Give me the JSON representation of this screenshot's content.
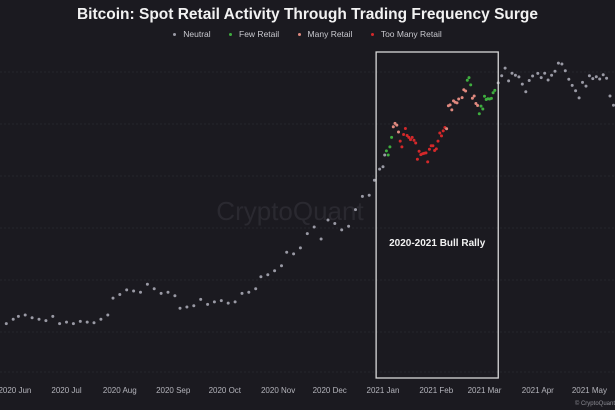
{
  "chart_data": {
    "type": "scatter",
    "title": "Bitcoin: Spot Retail Activity Through Trading Frequency Surge",
    "xlabel": "",
    "ylabel": "",
    "y_scale": "log",
    "ylim": [
      6200,
      72700
    ],
    "y_axis_labels_shown": false,
    "grid": "horizontal, faint dashed",
    "legend_placement": "top-center",
    "legend": [
      {
        "key": "n",
        "label": "Neutral",
        "color": "#9a9aa5"
      },
      {
        "key": "f",
        "label": "Few Retail",
        "color": "#3fae3f"
      },
      {
        "key": "m",
        "label": "Many Retail",
        "color": "#e0897f"
      },
      {
        "key": "t",
        "label": "Too Many Retail",
        "color": "#d4282a"
      }
    ],
    "x_ticks": [
      {
        "date": "2020-06-01",
        "label": "2020 Jun"
      },
      {
        "date": "2020-07-01",
        "label": "2020 Jul"
      },
      {
        "date": "2020-08-01",
        "label": "2020 Aug"
      },
      {
        "date": "2020-09-01",
        "label": "2020 Sep"
      },
      {
        "date": "2020-10-01",
        "label": "2020 Oct"
      },
      {
        "date": "2020-11-01",
        "label": "2020 Nov"
      },
      {
        "date": "2020-12-01",
        "label": "2020 Dec"
      },
      {
        "date": "2021-01-01",
        "label": "2021 Jan"
      },
      {
        "date": "2021-02-01",
        "label": "2021 Feb"
      },
      {
        "date": "2021-03-01",
        "label": "2021 Mar"
      },
      {
        "date": "2021-04-01",
        "label": "2021 Apr"
      },
      {
        "date": "2021-05-01",
        "label": "2021 May"
      }
    ],
    "annotation": {
      "label": "2020-2021 Bull Rally",
      "start": "2020-12-28",
      "end": "2021-03-09"
    },
    "watermark": "CryptoQuant",
    "copyright": "© CryptoQuant",
    "points": [
      [
        "2020-05-27",
        9100,
        "n"
      ],
      [
        "2020-05-31",
        9400,
        "n"
      ],
      [
        "2020-06-03",
        9600,
        "n"
      ],
      [
        "2020-06-07",
        9700,
        "n"
      ],
      [
        "2020-06-11",
        9500,
        "n"
      ],
      [
        "2020-06-15",
        9400,
        "n"
      ],
      [
        "2020-06-19",
        9300,
        "n"
      ],
      [
        "2020-06-23",
        9600,
        "n"
      ],
      [
        "2020-06-27",
        9100,
        "n"
      ],
      [
        "2020-07-01",
        9200,
        "n"
      ],
      [
        "2020-07-05",
        9100,
        "n"
      ],
      [
        "2020-07-09",
        9250,
        "n"
      ],
      [
        "2020-07-13",
        9200,
        "n"
      ],
      [
        "2020-07-17",
        9150,
        "n"
      ],
      [
        "2020-07-21",
        9400,
        "n"
      ],
      [
        "2020-07-25",
        9700,
        "n"
      ],
      [
        "2020-07-28",
        11000,
        "n"
      ],
      [
        "2020-08-01",
        11300,
        "n"
      ],
      [
        "2020-08-05",
        11700,
        "n"
      ],
      [
        "2020-08-09",
        11600,
        "n"
      ],
      [
        "2020-08-13",
        11500,
        "n"
      ],
      [
        "2020-08-17",
        12200,
        "n"
      ],
      [
        "2020-08-21",
        11800,
        "n"
      ],
      [
        "2020-08-25",
        11400,
        "n"
      ],
      [
        "2020-08-29",
        11500,
        "n"
      ],
      [
        "2020-09-02",
        11200,
        "n"
      ],
      [
        "2020-09-05",
        10200,
        "n"
      ],
      [
        "2020-09-09",
        10300,
        "n"
      ],
      [
        "2020-09-13",
        10400,
        "n"
      ],
      [
        "2020-09-17",
        10900,
        "n"
      ],
      [
        "2020-09-21",
        10500,
        "n"
      ],
      [
        "2020-09-25",
        10700,
        "n"
      ],
      [
        "2020-09-29",
        10800,
        "n"
      ],
      [
        "2020-10-03",
        10600,
        "n"
      ],
      [
        "2020-10-07",
        10700,
        "n"
      ],
      [
        "2020-10-11",
        11400,
        "n"
      ],
      [
        "2020-10-15",
        11500,
        "n"
      ],
      [
        "2020-10-19",
        11800,
        "n"
      ],
      [
        "2020-10-22",
        12900,
        "n"
      ],
      [
        "2020-10-26",
        13100,
        "n"
      ],
      [
        "2020-10-30",
        13500,
        "n"
      ],
      [
        "2020-11-03",
        14000,
        "n"
      ],
      [
        "2020-11-06",
        15500,
        "n"
      ],
      [
        "2020-11-10",
        15300,
        "n"
      ],
      [
        "2020-11-14",
        16000,
        "n"
      ],
      [
        "2020-11-18",
        17800,
        "n"
      ],
      [
        "2020-11-22",
        18700,
        "n"
      ],
      [
        "2020-11-26",
        17100,
        "n"
      ],
      [
        "2020-11-30",
        19700,
        "n"
      ],
      [
        "2020-12-04",
        19200,
        "n"
      ],
      [
        "2020-12-08",
        18300,
        "n"
      ],
      [
        "2020-12-12",
        18800,
        "n"
      ],
      [
        "2020-12-16",
        21300,
        "n"
      ],
      [
        "2020-12-20",
        23500,
        "n"
      ],
      [
        "2020-12-24",
        23700,
        "n"
      ],
      [
        "2020-12-27",
        26500,
        "n"
      ],
      [
        "2020-12-30",
        28800,
        "n"
      ],
      [
        "2021-01-01",
        29300,
        "n"
      ],
      [
        "2021-01-02",
        32000,
        "n"
      ],
      [
        "2021-01-03",
        33000,
        "f"
      ],
      [
        "2021-01-04",
        32000,
        "f"
      ],
      [
        "2021-01-05",
        34000,
        "f"
      ],
      [
        "2021-01-06",
        36500,
        "f"
      ],
      [
        "2021-01-07",
        39500,
        "m"
      ],
      [
        "2021-01-08",
        40500,
        "m"
      ],
      [
        "2021-01-09",
        40000,
        "m"
      ],
      [
        "2021-01-10",
        38000,
        "m"
      ],
      [
        "2021-01-11",
        35500,
        "t"
      ],
      [
        "2021-01-12",
        34000,
        "t"
      ],
      [
        "2021-01-13",
        37300,
        "t"
      ],
      [
        "2021-01-14",
        39000,
        "t"
      ],
      [
        "2021-01-15",
        37000,
        "t"
      ],
      [
        "2021-01-16",
        36500,
        "t"
      ],
      [
        "2021-01-17",
        35900,
        "t"
      ],
      [
        "2021-01-18",
        36500,
        "t"
      ],
      [
        "2021-01-19",
        35700,
        "t"
      ],
      [
        "2021-01-20",
        35000,
        "t"
      ],
      [
        "2021-01-21",
        31000,
        "t"
      ],
      [
        "2021-01-22",
        32900,
        "t"
      ],
      [
        "2021-01-23",
        32100,
        "t"
      ],
      [
        "2021-01-24",
        32300,
        "t"
      ],
      [
        "2021-01-25",
        32400,
        "t"
      ],
      [
        "2021-01-26",
        32500,
        "t"
      ],
      [
        "2021-01-27",
        30400,
        "t"
      ],
      [
        "2021-01-28",
        33400,
        "t"
      ],
      [
        "2021-01-29",
        34300,
        "t"
      ],
      [
        "2021-01-30",
        34300,
        "t"
      ],
      [
        "2021-01-31",
        33100,
        "t"
      ],
      [
        "2021-02-01",
        33500,
        "t"
      ],
      [
        "2021-02-02",
        35500,
        "t"
      ],
      [
        "2021-02-03",
        37700,
        "t"
      ],
      [
        "2021-02-04",
        36900,
        "t"
      ],
      [
        "2021-02-05",
        38300,
        "t"
      ],
      [
        "2021-02-06",
        39300,
        "t"
      ],
      [
        "2021-02-07",
        38900,
        "m"
      ],
      [
        "2021-02-08",
        46200,
        "m"
      ],
      [
        "2021-02-09",
        46500,
        "m"
      ],
      [
        "2021-02-10",
        44800,
        "m"
      ],
      [
        "2021-02-11",
        47900,
        "m"
      ],
      [
        "2021-02-12",
        47400,
        "m"
      ],
      [
        "2021-02-13",
        47200,
        "m"
      ],
      [
        "2021-02-14",
        48600,
        "m"
      ],
      [
        "2021-02-16",
        49100,
        "m"
      ],
      [
        "2021-02-17",
        52100,
        "m"
      ],
      [
        "2021-02-18",
        51600,
        "m"
      ],
      [
        "2021-02-19",
        55900,
        "f"
      ],
      [
        "2021-02-20",
        57000,
        "f"
      ],
      [
        "2021-02-21",
        54000,
        "f"
      ],
      [
        "2021-02-22",
        48900,
        "m"
      ],
      [
        "2021-02-23",
        49700,
        "m"
      ],
      [
        "2021-02-24",
        47000,
        "m"
      ],
      [
        "2021-02-25",
        46300,
        "m"
      ],
      [
        "2021-02-26",
        43500,
        "f"
      ],
      [
        "2021-02-27",
        46100,
        "f"
      ],
      [
        "2021-02-28",
        45100,
        "f"
      ],
      [
        "2021-03-01",
        49600,
        "f"
      ],
      [
        "2021-03-02",
        48400,
        "f"
      ],
      [
        "2021-03-03",
        48700,
        "f"
      ],
      [
        "2021-03-04",
        48600,
        "f"
      ],
      [
        "2021-03-05",
        48800,
        "f"
      ],
      [
        "2021-03-06",
        50900,
        "f"
      ],
      [
        "2021-03-07",
        51800,
        "f"
      ],
      [
        "2021-03-09",
        54800,
        "n"
      ],
      [
        "2021-03-11",
        57800,
        "n"
      ],
      [
        "2021-03-13",
        61200,
        "n"
      ],
      [
        "2021-03-15",
        55600,
        "n"
      ],
      [
        "2021-03-17",
        58900,
        "n"
      ],
      [
        "2021-03-19",
        58000,
        "n"
      ],
      [
        "2021-03-21",
        57300,
        "n"
      ],
      [
        "2021-03-23",
        54300,
        "n"
      ],
      [
        "2021-03-25",
        51300,
        "n"
      ],
      [
        "2021-03-27",
        55800,
        "n"
      ],
      [
        "2021-03-29",
        57700,
        "n"
      ],
      [
        "2021-04-01",
        58800,
        "n"
      ],
      [
        "2021-04-03",
        57000,
        "n"
      ],
      [
        "2021-04-05",
        58900,
        "n"
      ],
      [
        "2021-04-07",
        56000,
        "n"
      ],
      [
        "2021-04-09",
        58000,
        "n"
      ],
      [
        "2021-04-11",
        59800,
        "n"
      ],
      [
        "2021-04-13",
        63500,
        "n"
      ],
      [
        "2021-04-15",
        63100,
        "n"
      ],
      [
        "2021-04-17",
        60000,
        "n"
      ],
      [
        "2021-04-19",
        56300,
        "n"
      ],
      [
        "2021-04-21",
        53800,
        "n"
      ],
      [
        "2021-04-23",
        51700,
        "n"
      ],
      [
        "2021-04-25",
        49000,
        "n"
      ],
      [
        "2021-04-27",
        55000,
        "n"
      ],
      [
        "2021-04-29",
        53500,
        "n"
      ],
      [
        "2021-05-01",
        57800,
        "n"
      ],
      [
        "2021-05-03",
        56600,
        "n"
      ],
      [
        "2021-05-05",
        57400,
        "n"
      ],
      [
        "2021-05-07",
        56400,
        "n"
      ],
      [
        "2021-05-09",
        58200,
        "n"
      ],
      [
        "2021-05-11",
        56700,
        "n"
      ],
      [
        "2021-05-13",
        49700,
        "n"
      ],
      [
        "2021-05-15",
        46400,
        "n"
      ]
    ]
  }
}
